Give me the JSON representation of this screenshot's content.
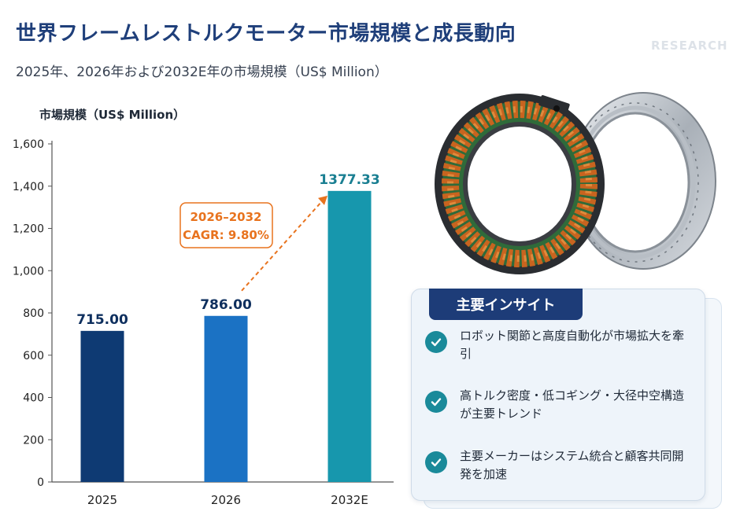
{
  "header": {
    "title": "世界フレームレストルクモーター市場規模と成長動向",
    "subtitle": "2025年、2026年および2032E年の市場規模（US$ Million）",
    "watermark": "RESEARCH"
  },
  "chart_data": {
    "type": "bar",
    "title": "",
    "ylabel": "市場規模（US$ Million）",
    "xlabel": "",
    "categories": [
      "2025",
      "2026",
      "2032E"
    ],
    "values": [
      715.0,
      786.0,
      1377.33
    ],
    "value_labels": [
      "715.00",
      "786.00",
      "1377.33"
    ],
    "ylim": [
      0,
      1600
    ],
    "yticks": [
      0,
      200,
      400,
      600,
      800,
      1000,
      1200,
      1400,
      1600
    ],
    "ytick_labels": [
      "0",
      "200",
      "400",
      "600",
      "800",
      "1,000",
      "1,200",
      "1,400",
      "1,600"
    ],
    "grid": false,
    "legend": "none",
    "bar_colors": [
      "#0e3a73",
      "#1b72c4",
      "#1797ad"
    ],
    "annotation": {
      "line1": "2026–2032",
      "line2": "CAGR: 9.80%",
      "color": "#e8731e",
      "from_category": "2026",
      "to_category": "2032E"
    }
  },
  "insights": {
    "header": "主要インサイト",
    "items": [
      {
        "icon": "check-icon",
        "text": "ロボット関節と高度自動化が市場拡大を牽引"
      },
      {
        "icon": "check-icon",
        "text": "高トルク密度・低コギング・大径中空構造が主要トレンド"
      },
      {
        "icon": "check-icon",
        "text": "主要メーカーはシステム統合と顧客共同開発を加速"
      }
    ],
    "accent": "#1d3c78",
    "check_color": "#1a8a9a"
  }
}
